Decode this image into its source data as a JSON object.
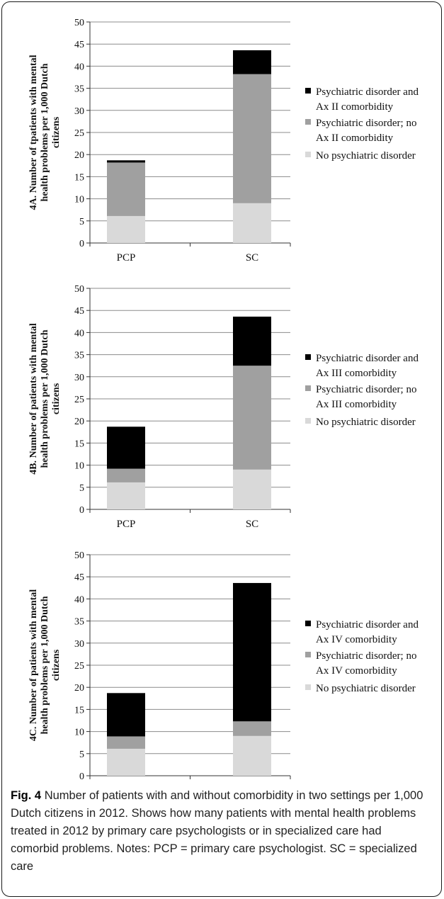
{
  "caption": {
    "label": "Fig. 4",
    "text": "Number of patients with and without comorbidity in two settings per 1,000 Dutch citizens in 2012. Shows how many patients with mental health problems treated in 2012 by primary care psychologists or in specialized care had comorbid problems. Notes: PCP = primary care psychologist. SC = specialized care"
  },
  "colors": {
    "no_disorder": "#d9d9d9",
    "no_comorbidity": "#a0a0a0",
    "comorbidity": "#000000",
    "grid": "#8c8c8c"
  },
  "chart_data": [
    {
      "type": "bar",
      "stacked": true,
      "ylabel": [
        "4A. Number of tpatients with mental",
        "health problems per 1,000 Dutch",
        "citizens"
      ],
      "categories": [
        "PCP",
        "SC"
      ],
      "ylim": [
        0,
        50
      ],
      "yticks": [
        0,
        5,
        10,
        15,
        20,
        25,
        30,
        35,
        40,
        45,
        50
      ],
      "grid": true,
      "legend_position": "right",
      "series": [
        {
          "name": "No psychiatric disorder",
          "legend_lines": [
            "No psychiatric disorder"
          ],
          "values": [
            6.1,
            9.0
          ]
        },
        {
          "name": "Psychiatric disorder; no Ax II comorbidity",
          "legend_lines": [
            "Psychiatric disorder; no",
            "Ax II comorbidity"
          ],
          "values": [
            12.1,
            29.2
          ]
        },
        {
          "name": "Psychiatric disorder and Ax II comorbidity",
          "legend_lines": [
            "Psychiatric disorder and",
            "Ax II comorbidity"
          ],
          "values": [
            0.5,
            5.4
          ]
        }
      ]
    },
    {
      "type": "bar",
      "stacked": true,
      "ylabel": [
        "4B. Number of  patients with mental",
        "health problems per 1,000 Dutch",
        "citizens"
      ],
      "categories": [
        "PCP",
        "SC"
      ],
      "ylim": [
        0,
        50
      ],
      "yticks": [
        0,
        5,
        10,
        15,
        20,
        25,
        30,
        35,
        40,
        45,
        50
      ],
      "grid": true,
      "legend_position": "right",
      "series": [
        {
          "name": "No psychiatric disorder",
          "legend_lines": [
            "No psychiatric disorder"
          ],
          "values": [
            6.1,
            9.0
          ]
        },
        {
          "name": "Psychiatric disorder; no Ax III comorbidity",
          "legend_lines": [
            "Psychiatric disorder; no",
            "Ax III comorbidity"
          ],
          "values": [
            3.1,
            23.5
          ]
        },
        {
          "name": "Psychiatric disorder and Ax III comorbidity",
          "legend_lines": [
            "Psychiatric disorder and",
            "Ax III comorbidity"
          ],
          "values": [
            9.5,
            11.1
          ]
        }
      ]
    },
    {
      "type": "bar",
      "stacked": true,
      "ylabel": [
        "4C. Number of patients with mental",
        "health problems per 1,000 Dutch",
        "citizens"
      ],
      "categories": [
        "PCP",
        "SC"
      ],
      "ylim": [
        0,
        50
      ],
      "yticks": [
        0,
        5,
        10,
        15,
        20,
        25,
        30,
        35,
        40,
        45,
        50
      ],
      "grid": true,
      "legend_position": "right",
      "series": [
        {
          "name": "No psychiatric disorder",
          "legend_lines": [
            "No psychiatric disorder"
          ],
          "values": [
            6.1,
            9.0
          ]
        },
        {
          "name": "Psychiatric disorder; no Ax IV comorbidity",
          "legend_lines": [
            "Psychiatric disorder; no",
            "Ax IV comorbidity"
          ],
          "values": [
            2.8,
            3.3
          ]
        },
        {
          "name": "Psychiatric disorder and Ax IV comorbidity",
          "legend_lines": [
            "Psychiatric disorder and",
            "Ax IV comorbidity"
          ],
          "values": [
            9.8,
            31.3
          ]
        }
      ]
    }
  ]
}
